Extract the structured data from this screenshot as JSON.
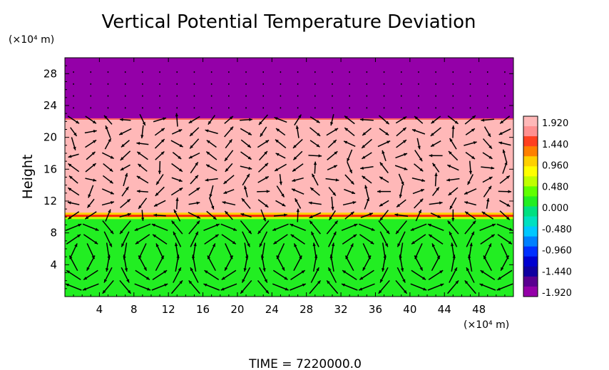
{
  "chart_data": {
    "type": "heatmap",
    "title": "Vertical Potential Temperature Deviation",
    "ylabel": "Height",
    "x_unit_label": "(×10⁴ m)",
    "y_unit_label": "(×10⁴ m)",
    "xlim": [
      0,
      52
    ],
    "ylim": [
      0,
      30
    ],
    "x_ticks": [
      4,
      8,
      12,
      16,
      20,
      24,
      28,
      32,
      36,
      40,
      44,
      48
    ],
    "y_ticks": [
      4,
      8,
      12,
      16,
      20,
      24,
      28
    ],
    "x_tick_labels": [
      "4",
      "8",
      "12",
      "16",
      "20",
      "24",
      "28",
      "32",
      "36",
      "40",
      "44",
      "48"
    ],
    "y_tick_labels": [
      "4",
      "8",
      "12",
      "16",
      "20",
      "24",
      "28"
    ],
    "footer": "TIME = 7220000.0",
    "layers": [
      {
        "from_height": 0,
        "to_height": 10,
        "value": 0.0,
        "color": "#22ee22"
      },
      {
        "from_height": 10,
        "to_height": 22.3,
        "value": 1.92,
        "color": "#ffb8b8"
      },
      {
        "from_height": 22.3,
        "to_height": 30,
        "value": -1.92,
        "color": "#9400a8"
      }
    ],
    "interface_heights": [
      10,
      22.3
    ],
    "colorbar": {
      "labels": [
        "1.920",
        "1.440",
        "0.960",
        "0.480",
        "0.000",
        "-0.480",
        "-0.960",
        "-1.440",
        "-1.920"
      ],
      "colors": [
        "#ffb8b8",
        "#ff9090",
        "#ff4020",
        "#ff8000",
        "#ffd000",
        "#ffff00",
        "#c0ff00",
        "#60ff00",
        "#22ee22",
        "#00e080",
        "#00e0c0",
        "#00c8ff",
        "#0080ff",
        "#0030ff",
        "#0000d0",
        "#1000a0",
        "#5a0090",
        "#9400a8"
      ]
    },
    "vector_field": {
      "kind": "velocity arrows",
      "color": "#000000",
      "circulation_cell_centers_x": [
        2,
        10,
        18,
        26,
        34,
        42,
        50
      ]
    }
  }
}
